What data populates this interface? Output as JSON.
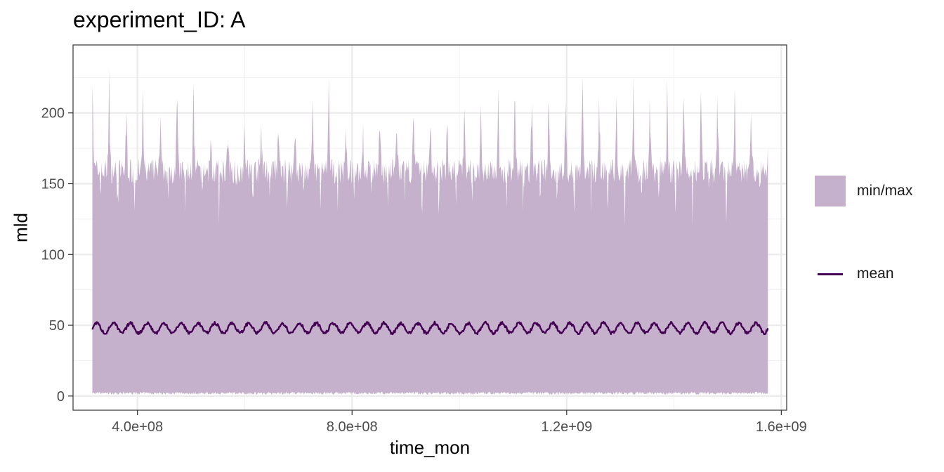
{
  "title": "experiment_ID: A",
  "chart_data": {
    "type": "area",
    "title": "experiment_ID: A",
    "xlabel": "time_mon",
    "ylabel": "mld",
    "xlim": [
      280000000,
      1610000000
    ],
    "ylim": [
      -10,
      248
    ],
    "x_ticks": [
      400000000,
      800000000,
      1200000000,
      1600000000
    ],
    "x_tick_labels": [
      "4.0e+08",
      "8.0e+08",
      "1.2e+09",
      "1.6e+09"
    ],
    "y_ticks": [
      0,
      50,
      100,
      150,
      200
    ],
    "y_tick_labels": [
      "0",
      "50",
      "100",
      "150",
      "200"
    ],
    "grid": true,
    "legend_position": "right",
    "series": [
      {
        "name": "min/max",
        "kind": "ribbon",
        "color": "#c5b1cc",
        "x_start": 316000000,
        "x_end": 1575000000,
        "cycle_length": 31500000,
        "peaks": [
          220,
          175,
          205,
          165,
          200,
          210,
          170,
          165,
          175,
          180,
          170,
          180,
          175,
          210,
          185,
          170,
          180,
          175,
          185,
          180,
          185,
          180,
          200,
          175,
          215,
          195,
          200,
          185,
          205,
          210,
          180,
          195,
          215,
          180,
          225,
          190,
          215,
          185,
          210,
          175,
          235,
          200,
          210,
          195,
          215,
          195,
          210,
          200,
          210,
          205,
          190,
          195,
          205,
          200,
          205,
          195,
          210,
          190,
          190,
          185,
          190,
          195,
          185,
          190,
          195,
          200,
          190,
          195,
          190,
          195,
          190,
          185,
          200,
          185,
          190,
          195
        ],
        "baseline_min": 150,
        "min_range": [
          1,
          3
        ]
      },
      {
        "name": "mean",
        "kind": "line",
        "color": "#440154",
        "x_start": 316000000,
        "x_end": 1575000000,
        "cycle_length": 31500000,
        "mean_level": 48,
        "amplitude": 3.5
      }
    ]
  },
  "legend": {
    "items": [
      {
        "label": "min/max",
        "color": "#c5b1cc"
      },
      {
        "label": "mean",
        "color": "#440154"
      }
    ]
  }
}
